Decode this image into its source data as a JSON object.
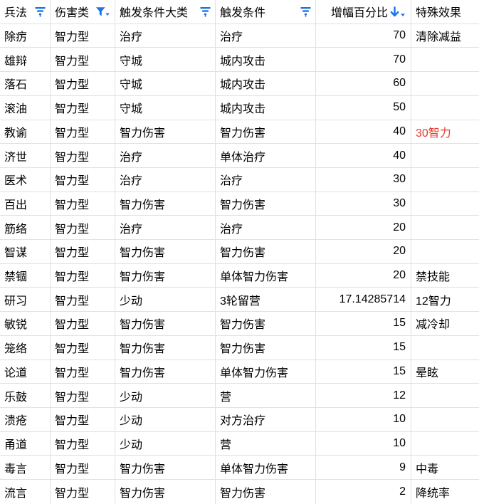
{
  "table": {
    "columns": [
      {
        "key": "skill-name",
        "label": "兵法",
        "icon": "filter-icon",
        "align": "left"
      },
      {
        "key": "damage-type",
        "label": "伤害类",
        "icon": "filter-active-icon",
        "align": "left"
      },
      {
        "key": "trigger-category",
        "label": "触发条件大类",
        "icon": "filter-icon",
        "align": "left"
      },
      {
        "key": "trigger-condition",
        "label": "触发条件",
        "icon": "filter-icon",
        "align": "left"
      },
      {
        "key": "boost-percent",
        "label": "增幅百分比",
        "icon": "sort-desc-icon",
        "align": "right"
      },
      {
        "key": "special-effect",
        "label": "特殊效果",
        "icon": null,
        "align": "left"
      }
    ],
    "rows": [
      [
        "除疠",
        "智力型",
        "治疗",
        "治疗",
        "70",
        "清除减益"
      ],
      [
        "雄辩",
        "智力型",
        "守城",
        "城内攻击",
        "70",
        ""
      ],
      [
        "落石",
        "智力型",
        "守城",
        "城内攻击",
        "60",
        ""
      ],
      [
        "滚油",
        "智力型",
        "守城",
        "城内攻击",
        "50",
        ""
      ],
      [
        "教谕",
        "智力型",
        "智力伤害",
        "智力伤害",
        "40",
        "30智力"
      ],
      [
        "济世",
        "智力型",
        "治疗",
        "单体治疗",
        "40",
        ""
      ],
      [
        "医术",
        "智力型",
        "治疗",
        "治疗",
        "30",
        ""
      ],
      [
        "百出",
        "智力型",
        "智力伤害",
        "智力伤害",
        "30",
        ""
      ],
      [
        "筋络",
        "智力型",
        "治疗",
        "治疗",
        "20",
        ""
      ],
      [
        "智谋",
        "智力型",
        "智力伤害",
        "智力伤害",
        "20",
        ""
      ],
      [
        "禁锢",
        "智力型",
        "智力伤害",
        "单体智力伤害",
        "20",
        "禁技能"
      ],
      [
        "研习",
        "智力型",
        "少动",
        "3轮留营",
        "17.14285714",
        "12智力"
      ],
      [
        "敏锐",
        "智力型",
        "智力伤害",
        "智力伤害",
        "15",
        "减冷却"
      ],
      [
        "笼络",
        "智力型",
        "智力伤害",
        "智力伤害",
        "15",
        ""
      ],
      [
        "论道",
        "智力型",
        "智力伤害",
        "单体智力伤害",
        "15",
        "晕眩"
      ],
      [
        "乐鼓",
        "智力型",
        "少动",
        "营",
        "12",
        ""
      ],
      [
        "溃疮",
        "智力型",
        "少动",
        "对方治疗",
        "10",
        ""
      ],
      [
        "甬道",
        "智力型",
        "少动",
        "营",
        "10",
        ""
      ],
      [
        "毒言",
        "智力型",
        "智力伤害",
        "单体智力伤害",
        "9",
        "中毒"
      ],
      [
        "流言",
        "智力型",
        "智力伤害",
        "智力伤害",
        "2",
        "降统率"
      ]
    ],
    "red_special_effect_rows": [
      4
    ]
  },
  "colors": {
    "accent_blue": "#1a73e8",
    "special_red": "#e83a2c",
    "gridline": "#e1e1e1",
    "text": "#000000",
    "background": "#ffffff"
  }
}
